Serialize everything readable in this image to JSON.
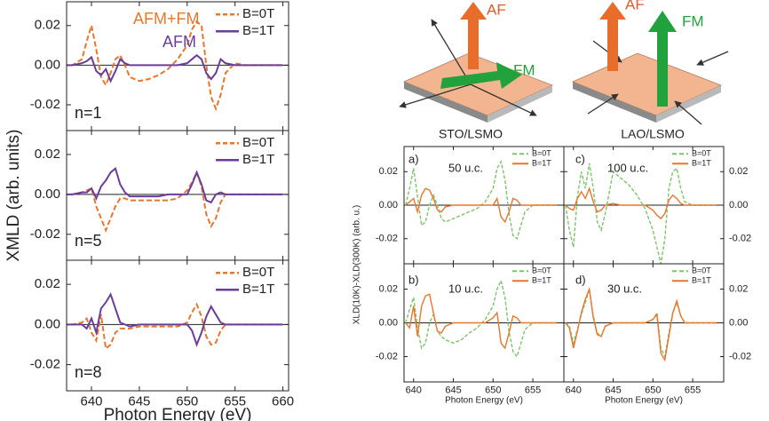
{
  "diagram": {
    "sto": {
      "af": "AF",
      "fm": "FM",
      "caption": "STO/LSMO"
    },
    "lao": {
      "af": "AF",
      "fm": "FM",
      "caption": "LAO/LSMO"
    }
  },
  "chart_data": [
    {
      "type": "line",
      "xlim": [
        637.4,
        660.6
      ],
      "ylim": [
        -0.033,
        0.032
      ],
      "xticks": [
        640,
        645,
        650,
        655,
        660
      ],
      "yticks": [
        -0.02,
        {
          "value": 0,
          "label": "0.00"
        },
        0.02
      ],
      "zeroline": true,
      "yaxis_side": "left",
      "annotations": [
        {
          "text": "AFM+FM",
          "color": "#e8762c"
        },
        {
          "text": "AFM",
          "color": "#6a3d9a"
        },
        {
          "text": "n=1",
          "color": "#222222"
        }
      ],
      "x": [
        637,
        638,
        639,
        639.5,
        640,
        640.5,
        641,
        641.5,
        642,
        642.5,
        643,
        643.5,
        644,
        645,
        646,
        647,
        648,
        649,
        650,
        650.5,
        651,
        651.5,
        652,
        652.5,
        653,
        653.5,
        654,
        655,
        656,
        658,
        660
      ],
      "series": [
        {
          "name": "B=0T",
          "color": "#e8762c",
          "dash": true,
          "values": [
            0,
            0,
            0.003,
            0.012,
            0.02,
            0.008,
            -0.006,
            -0.01,
            -0.004,
            0.003,
            0.005,
            0.0,
            -0.006,
            -0.008,
            -0.007,
            -0.005,
            -0.002,
            0.003,
            0.01,
            0.018,
            0.022,
            0.02,
            0.0,
            -0.016,
            -0.022,
            -0.015,
            -0.004,
            0.001,
            0,
            0,
            0
          ]
        },
        {
          "name": "B=1T",
          "color": "#6a3d9a",
          "dash": false,
          "values": [
            0,
            0,
            0.001,
            0.002,
            0.004,
            -0.003,
            -0.005,
            -0.002,
            -0.008,
            -0.003,
            0.003,
            0.001,
            0,
            0,
            0,
            0,
            0,
            0,
            0.001,
            0.003,
            0.005,
            0.003,
            -0.004,
            -0.007,
            -0.004,
            0.003,
            0.001,
            0,
            0,
            0,
            0
          ]
        }
      ]
    },
    {
      "type": "line",
      "xlim": [
        637.4,
        660.6
      ],
      "ylim": [
        -0.033,
        0.032
      ],
      "ylabel": "XMLD (arb. units)",
      "xticks": [
        640,
        645,
        650,
        655,
        660
      ],
      "yticks": [
        -0.02,
        {
          "value": 0,
          "label": "0.00"
        },
        0.02
      ],
      "zeroline": true,
      "yaxis_side": "left",
      "annotations": [
        {
          "text": "n=5",
          "color": "#222222"
        }
      ],
      "x": [
        637,
        638,
        639,
        639.5,
        640,
        640.5,
        641,
        641.5,
        642,
        642.5,
        643,
        643.5,
        644,
        645,
        646,
        647,
        648,
        649,
        650,
        650.5,
        651,
        651.5,
        652,
        652.5,
        653,
        653.5,
        654,
        655,
        656,
        658,
        660
      ],
      "series": [
        {
          "name": "B=0T",
          "color": "#e8762c",
          "dash": true,
          "values": [
            0,
            0,
            0.001,
            0.002,
            0.003,
            -0.006,
            -0.012,
            -0.018,
            -0.012,
            -0.006,
            -0.002,
            -0.002,
            -0.003,
            -0.003,
            -0.003,
            -0.003,
            -0.003,
            -0.002,
            0.002,
            0.006,
            0.011,
            0.004,
            -0.01,
            -0.016,
            -0.012,
            -0.004,
            0,
            0,
            0,
            0,
            0
          ]
        },
        {
          "name": "B=1T",
          "color": "#6a3d9a",
          "dash": false,
          "values": [
            0,
            0,
            0.001,
            0.001,
            0.003,
            -0.002,
            0.004,
            0.007,
            0.011,
            0.013,
            0.005,
            0.001,
            -0.001,
            -0.001,
            -0.001,
            -0.001,
            0,
            0,
            0,
            0.005,
            0.011,
            0.005,
            -0.003,
            -0.004,
            0.0,
            0.001,
            0,
            0,
            0,
            0,
            0
          ]
        }
      ]
    },
    {
      "type": "line",
      "xlim": [
        637.4,
        660.6
      ],
      "ylim": [
        -0.033,
        0.032
      ],
      "xlabel": "Photon Energy (eV)",
      "xticks": [
        640,
        645,
        650,
        655,
        660
      ],
      "yticks": [
        -0.02,
        {
          "value": 0,
          "label": "0.00"
        },
        0.02
      ],
      "zeroline": true,
      "yaxis_side": "left",
      "annotations": [
        {
          "text": "n=8",
          "color": "#222222"
        }
      ],
      "x": [
        637,
        638,
        639,
        639.5,
        640,
        640.5,
        641,
        641.5,
        642,
        642.5,
        643,
        643.5,
        644,
        645,
        646,
        647,
        648,
        649,
        650,
        650.5,
        651,
        651.5,
        652,
        652.5,
        653,
        653.5,
        654,
        655,
        656,
        658,
        660
      ],
      "series": [
        {
          "name": "B=0T",
          "color": "#e8762c",
          "dash": true,
          "values": [
            0,
            0,
            0.001,
            0.003,
            -0.004,
            -0.008,
            0.005,
            -0.012,
            -0.01,
            -0.004,
            -0.002,
            -0.002,
            -0.002,
            -0.001,
            -0.001,
            -0.001,
            -0.001,
            -0.001,
            0.001,
            0.006,
            0.01,
            0.004,
            -0.006,
            -0.01,
            -0.009,
            -0.003,
            0,
            0,
            0,
            0,
            0
          ]
        },
        {
          "name": "B=1T",
          "color": "#6a3d9a",
          "dash": false,
          "values": [
            0,
            0,
            0,
            -0.002,
            0.003,
            -0.004,
            0.008,
            0.011,
            0.015,
            0.008,
            0.001,
            0,
            -0.001,
            0,
            0,
            0,
            0,
            0,
            0,
            -0.003,
            -0.01,
            -0.004,
            0.004,
            0.009,
            0.005,
            0.001,
            0,
            0,
            0,
            0,
            0
          ]
        }
      ]
    },
    {
      "type": "line",
      "xlim": [
        638.8,
        658.9
      ],
      "ylim": [
        -0.035,
        0.035
      ],
      "xticks": [
        640,
        645,
        650,
        655
      ],
      "yticks": [
        -0.02,
        {
          "value": 0,
          "label": "0.00"
        },
        0.02
      ],
      "zeroline": true,
      "yaxis_side": "left",
      "annotations": [
        {
          "text": "a)",
          "color": "#222222"
        },
        {
          "text": "50 u.c.",
          "color": "#222222"
        }
      ],
      "x": [
        639,
        639.5,
        640,
        640.5,
        641,
        641.5,
        642,
        642.5,
        643,
        643.5,
        644,
        645,
        646,
        647,
        648,
        649,
        650,
        650.5,
        651,
        651.5,
        652,
        652.5,
        653,
        653.5,
        654,
        655,
        656,
        658
      ],
      "series": [
        {
          "name": "B=0T",
          "color": "#7dc36b",
          "dash": true,
          "values": [
            0,
            0.01,
            0.022,
            0.005,
            -0.012,
            -0.01,
            0.0,
            0.006,
            0.0,
            -0.008,
            -0.01,
            -0.008,
            -0.006,
            -0.004,
            -0.002,
            0.002,
            0.01,
            0.022,
            0.026,
            0.015,
            -0.005,
            -0.018,
            -0.02,
            -0.012,
            -0.004,
            0,
            0,
            0
          ]
        },
        {
          "name": "B=1T",
          "color": "#e8762c",
          "dash": false,
          "values": [
            0,
            0.002,
            0.004,
            -0.004,
            0.006,
            0.01,
            0.009,
            0.004,
            -0.003,
            -0.004,
            -0.001,
            0,
            0,
            0,
            0,
            0,
            0,
            0.004,
            -0.007,
            -0.01,
            -0.004,
            0.004,
            0.003,
            0,
            0,
            0,
            0,
            0
          ]
        }
      ]
    },
    {
      "type": "line",
      "xlim": [
        638.8,
        658.9
      ],
      "ylim": [
        -0.035,
        0.035
      ],
      "xlabel": "Photon Energy (eV)",
      "ylabel": "XLD(10K)-XLD(300K) (arb. u.)",
      "xticks": [
        640,
        645,
        650,
        655
      ],
      "yticks": [
        -0.02,
        {
          "value": 0,
          "label": "0.00"
        },
        0.02
      ],
      "zeroline": true,
      "yaxis_side": "left",
      "annotations": [
        {
          "text": "b)",
          "color": "#222222"
        },
        {
          "text": "10 u.c.",
          "color": "#222222"
        }
      ],
      "x": [
        639,
        639.5,
        640,
        640.5,
        641,
        641.5,
        642,
        642.5,
        643,
        643.5,
        644,
        645,
        646,
        647,
        648,
        649,
        650,
        650.5,
        651,
        651.5,
        652,
        652.5,
        653,
        653.5,
        654,
        655,
        656,
        658
      ],
      "series": [
        {
          "name": "B=0T",
          "color": "#7dc36b",
          "dash": true,
          "values": [
            0,
            0.008,
            0.015,
            -0.003,
            -0.015,
            -0.012,
            0.0,
            0.005,
            -0.005,
            -0.008,
            -0.01,
            -0.012,
            -0.01,
            -0.006,
            -0.003,
            0.002,
            0.01,
            0.02,
            0.025,
            0.015,
            -0.005,
            -0.017,
            -0.02,
            -0.012,
            -0.004,
            0,
            0,
            0
          ]
        },
        {
          "name": "B=1T",
          "color": "#e8762c",
          "dash": false,
          "values": [
            0,
            -0.003,
            0.01,
            -0.008,
            0.01,
            0.016,
            0.017,
            0.006,
            -0.005,
            -0.006,
            -0.002,
            0,
            0,
            0,
            0,
            0,
            0.003,
            0.006,
            -0.012,
            -0.015,
            -0.006,
            0.004,
            0.003,
            0,
            0,
            0,
            0,
            0
          ]
        }
      ]
    },
    {
      "type": "line",
      "xlim": [
        638.8,
        658.9
      ],
      "ylim": [
        -0.035,
        0.035
      ],
      "xticks": [
        640,
        645,
        650,
        655
      ],
      "yticks": [
        -0.02,
        {
          "value": 0,
          "label": "0.00"
        },
        0.02
      ],
      "zeroline": true,
      "yaxis_side": "right",
      "annotations": [
        {
          "text": "c)",
          "color": "#222222"
        },
        {
          "text": "100 u.c.",
          "color": "#222222"
        }
      ],
      "x": [
        639,
        639.5,
        640,
        640.5,
        641,
        641.5,
        642,
        642.5,
        643,
        643.5,
        644,
        645,
        646,
        647,
        648,
        649,
        650,
        650.5,
        651,
        651.5,
        652,
        652.5,
        653,
        653.5,
        654,
        655,
        656,
        658
      ],
      "series": [
        {
          "name": "B=0T",
          "color": "#7dc36b",
          "dash": true,
          "values": [
            0,
            -0.015,
            -0.025,
            0.005,
            0.02,
            0.01,
            0.025,
            0.01,
            -0.01,
            -0.015,
            -0.005,
            0.02,
            0.016,
            0.012,
            0.006,
            -0.002,
            -0.015,
            -0.025,
            -0.035,
            -0.02,
            0.01,
            0.02,
            0.022,
            0.01,
            0.002,
            0,
            0,
            0
          ]
        },
        {
          "name": "B=1T",
          "color": "#e8762c",
          "dash": false,
          "values": [
            0,
            -0.002,
            -0.003,
            0.004,
            0.008,
            0.004,
            0.01,
            0.002,
            -0.004,
            -0.003,
            0,
            0.001,
            0,
            0,
            0,
            0,
            -0.003,
            -0.006,
            -0.008,
            -0.005,
            0.003,
            0.006,
            0.004,
            0.001,
            0,
            0,
            0,
            0
          ]
        }
      ]
    },
    {
      "type": "line",
      "xlim": [
        638.8,
        658.9
      ],
      "ylim": [
        -0.035,
        0.035
      ],
      "xlabel": "Photon Energy (eV)",
      "xticks": [
        640,
        645,
        650,
        655
      ],
      "yticks": [
        -0.02,
        {
          "value": 0,
          "label": "0.00"
        },
        0.02
      ],
      "zeroline": true,
      "yaxis_side": "right",
      "annotations": [
        {
          "text": "d)",
          "color": "#222222"
        },
        {
          "text": "30 u.c.",
          "color": "#222222"
        }
      ],
      "x": [
        639,
        639.5,
        640,
        640.5,
        641,
        641.5,
        642,
        642.5,
        643,
        643.5,
        644,
        645,
        646,
        647,
        648,
        649,
        650,
        650.5,
        651,
        651.5,
        652,
        652.5,
        653,
        653.5,
        654,
        655,
        656,
        658
      ],
      "series": [
        {
          "name": "B=0T",
          "color": "#7dc36b",
          "dash": true,
          "values": [
            0,
            -0.002,
            -0.012,
            -0.004,
            0.005,
            0.012,
            0.02,
            0.004,
            -0.006,
            -0.008,
            -0.002,
            0,
            0,
            0,
            0,
            0,
            0.002,
            0.006,
            -0.015,
            -0.02,
            -0.006,
            0.006,
            0.012,
            0.004,
            0,
            0,
            0,
            0
          ]
        },
        {
          "name": "B=1T",
          "color": "#e8762c",
          "dash": false,
          "values": [
            0,
            -0.003,
            -0.015,
            -0.005,
            0.006,
            0.014,
            0.02,
            0.003,
            -0.007,
            -0.008,
            -0.002,
            0,
            0,
            0,
            0,
            0,
            0.002,
            0.005,
            -0.018,
            -0.022,
            -0.008,
            0.006,
            0.013,
            0.004,
            0,
            0,
            0,
            0
          ]
        }
      ]
    }
  ]
}
